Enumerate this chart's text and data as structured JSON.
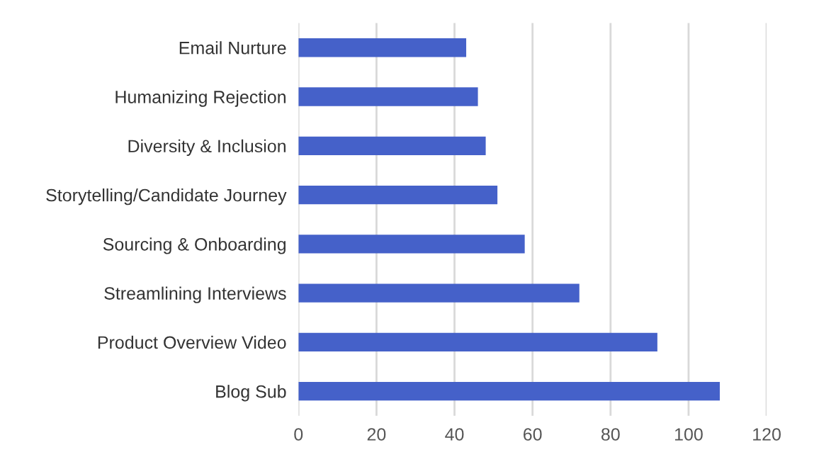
{
  "chart_data": {
    "type": "bar",
    "orientation": "horizontal",
    "categories": [
      "Email Nurture",
      "Humanizing Rejection",
      "Diversity & Inclusion",
      "Storytelling/Candidate Journey",
      "Sourcing & Onboarding",
      "Streamlining Interviews",
      "Product Overview Video",
      "Blog Sub"
    ],
    "values": [
      43,
      46,
      48,
      51,
      58,
      72,
      92,
      108
    ],
    "color": "#4561c9",
    "xlim": [
      0,
      120
    ],
    "xticks": [
      0,
      20,
      40,
      60,
      80,
      100,
      120
    ],
    "grid": "x"
  }
}
